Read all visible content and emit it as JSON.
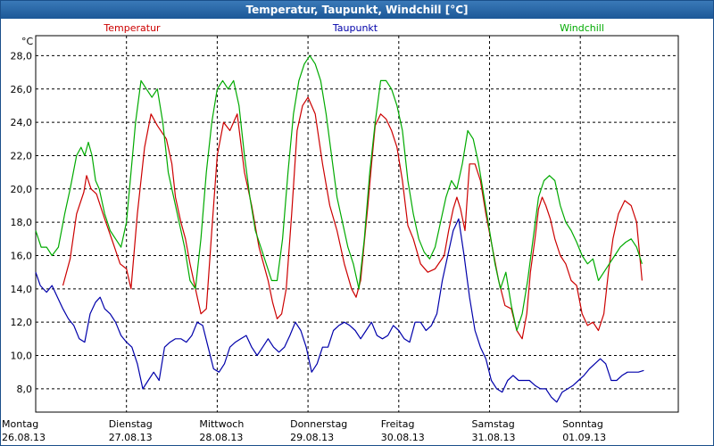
{
  "window": {
    "title": "Temperatur, Taupunkt, Windchill [°C]"
  },
  "colors": {
    "temperatur": "#cc0000",
    "taupunkt": "#0000aa",
    "windchill": "#00aa00",
    "titlebar": "#1c5897"
  },
  "chart_data": {
    "type": "line",
    "title": "Temperatur, Taupunkt, Windchill [°C]",
    "ylabel": "°C",
    "ylim": [
      6.6,
      29.2
    ],
    "yticks": [
      "8,0",
      "10,0",
      "12,0",
      "14,0",
      "16,0",
      "18,0",
      "20,0",
      "22,0",
      "24,0",
      "26,0",
      "28,0"
    ],
    "xlim": [
      0,
      7
    ],
    "xticks": [
      {
        "day": "Montag",
        "date": "26.08.13"
      },
      {
        "day": "Dienstag",
        "date": "27.08.13"
      },
      {
        "day": "Mittwoch",
        "date": "28.08.13"
      },
      {
        "day": "Donnerstag",
        "date": "29.08.13"
      },
      {
        "day": "Freitag",
        "date": "30.08.13"
      },
      {
        "day": "Samstag",
        "date": "31.08.13"
      },
      {
        "day": "Sonntag",
        "date": "01.09.13"
      }
    ],
    "grid": true,
    "legend": [
      "Temperatur",
      "Taupunkt",
      "Windchill"
    ],
    "series": [
      {
        "name": "Temperatur",
        "x": [
          0.3,
          0.38,
          0.45,
          0.53,
          0.56,
          0.61,
          0.67,
          0.76,
          0.85,
          0.93,
          1.0,
          1.05,
          1.12,
          1.2,
          1.27,
          1.34,
          1.44,
          1.5,
          1.54,
          1.6,
          1.65,
          1.7,
          1.76,
          1.82,
          1.88,
          1.94,
          2.0,
          2.07,
          2.14,
          2.22,
          2.3,
          2.38,
          2.46,
          2.51,
          2.56,
          2.61,
          2.66,
          2.71,
          2.76,
          2.82,
          2.88,
          2.94,
          3.0,
          3.08,
          3.16,
          3.24,
          3.32,
          3.4,
          3.48,
          3.53,
          3.58,
          3.62,
          3.66,
          3.7,
          3.74,
          3.8,
          3.86,
          3.92,
          3.98,
          4.04,
          4.1,
          4.16,
          4.24,
          4.32,
          4.4,
          4.5,
          4.55,
          4.6,
          4.64,
          4.68,
          4.73,
          4.78,
          4.84,
          4.9,
          4.96,
          5.02,
          5.1,
          5.17,
          5.24,
          5.3,
          5.36,
          5.41,
          5.45,
          5.5,
          5.54,
          5.58,
          5.62,
          5.67,
          5.72,
          5.78,
          5.84,
          5.9,
          5.96,
          6.02,
          6.08,
          6.14,
          6.2,
          6.26,
          6.31,
          6.36,
          6.42,
          6.49,
          6.56,
          6.62,
          6.68
        ],
        "y": [
          14.2,
          15.8,
          18.5,
          19.8,
          20.8,
          20.0,
          19.7,
          18.2,
          16.8,
          15.5,
          15.2,
          14.0,
          18.5,
          22.5,
          24.5,
          23.8,
          23.0,
          21.5,
          19.5,
          18.0,
          17.0,
          15.5,
          14.0,
          12.5,
          12.8,
          17.5,
          22.0,
          24.0,
          23.5,
          24.5,
          21.0,
          19.0,
          16.5,
          15.5,
          14.5,
          13.2,
          12.2,
          12.5,
          14.0,
          18.5,
          23.5,
          25.0,
          25.5,
          24.5,
          21.5,
          19.0,
          17.5,
          15.5,
          14.0,
          13.5,
          14.5,
          16.8,
          19.0,
          21.5,
          23.8,
          24.5,
          24.2,
          23.5,
          22.5,
          20.5,
          17.8,
          17.0,
          15.5,
          15.0,
          15.2,
          16.0,
          17.5,
          18.8,
          19.5,
          18.8,
          17.5,
          21.5,
          21.5,
          20.5,
          18.5,
          16.8,
          14.5,
          13.0,
          12.8,
          11.5,
          11.0,
          12.5,
          15.0,
          17.0,
          18.8,
          19.5,
          19.0,
          18.2,
          17.0,
          16.0,
          15.5,
          14.5,
          14.2,
          12.5,
          11.8,
          12.0,
          11.5,
          12.5,
          15.0,
          17.0,
          18.5,
          19.3,
          19.0,
          18.0,
          14.5
        ]
      },
      {
        "name": "Taupunkt",
        "x": [
          0.0,
          0.05,
          0.12,
          0.18,
          0.24,
          0.3,
          0.36,
          0.42,
          0.48,
          0.54,
          0.6,
          0.66,
          0.71,
          0.76,
          0.82,
          0.88,
          0.94,
          1.0,
          1.06,
          1.12,
          1.18,
          1.24,
          1.3,
          1.36,
          1.42,
          1.48,
          1.54,
          1.6,
          1.66,
          1.72,
          1.78,
          1.84,
          1.9,
          1.96,
          2.02,
          2.08,
          2.14,
          2.2,
          2.26,
          2.32,
          2.38,
          2.44,
          2.5,
          2.56,
          2.62,
          2.68,
          2.74,
          2.8,
          2.86,
          2.92,
          2.98,
          3.04,
          3.1,
          3.16,
          3.22,
          3.28,
          3.34,
          3.4,
          3.46,
          3.52,
          3.58,
          3.64,
          3.7,
          3.76,
          3.82,
          3.88,
          3.94,
          4.0,
          4.06,
          4.12,
          4.18,
          4.24,
          4.3,
          4.36,
          4.42,
          4.48,
          4.54,
          4.6,
          4.66,
          4.72,
          4.78,
          4.84,
          4.9,
          4.96,
          5.02,
          5.08,
          5.14,
          5.2,
          5.26,
          5.32,
          5.38,
          5.44,
          5.5,
          5.56,
          5.62,
          5.68,
          5.74,
          5.8,
          5.86,
          5.92,
          5.98,
          6.04,
          6.1,
          6.16,
          6.22,
          6.28,
          6.34,
          6.4,
          6.46,
          6.52,
          6.58,
          6.64,
          6.7
        ],
        "y": [
          15.0,
          14.2,
          13.8,
          14.2,
          13.5,
          12.8,
          12.2,
          11.8,
          11.0,
          10.8,
          12.5,
          13.2,
          13.5,
          12.8,
          12.5,
          12.0,
          11.2,
          10.8,
          10.5,
          9.5,
          8.0,
          8.5,
          9.0,
          8.5,
          10.5,
          10.8,
          11.0,
          11.0,
          10.8,
          11.2,
          12.0,
          11.8,
          10.5,
          9.2,
          9.0,
          9.5,
          10.5,
          10.8,
          11.0,
          11.2,
          10.5,
          10.0,
          10.5,
          11.0,
          10.5,
          10.2,
          10.5,
          11.2,
          12.0,
          11.5,
          10.5,
          9.0,
          9.5,
          10.5,
          10.5,
          11.5,
          11.8,
          12.0,
          11.8,
          11.5,
          11.0,
          11.5,
          12.0,
          11.2,
          11.0,
          11.2,
          11.8,
          11.5,
          11.0,
          10.8,
          12.0,
          12.0,
          11.5,
          11.8,
          12.5,
          14.5,
          16.0,
          17.5,
          18.2,
          16.0,
          13.5,
          11.5,
          10.5,
          9.8,
          8.5,
          8.0,
          7.8,
          8.5,
          8.8,
          8.5,
          8.5,
          8.5,
          8.2,
          8.0,
          8.0,
          7.5,
          7.2,
          7.8,
          8.0,
          8.2,
          8.5,
          8.8,
          9.2,
          9.5,
          9.8,
          9.5,
          8.5,
          8.5,
          8.8,
          9.0,
          9.0,
          9.0,
          9.1
        ]
      },
      {
        "name": "Windchill",
        "x": [
          0.0,
          0.06,
          0.12,
          0.18,
          0.25,
          0.32,
          0.38,
          0.45,
          0.5,
          0.54,
          0.58,
          0.62,
          0.66,
          0.7,
          0.76,
          0.82,
          0.88,
          0.94,
          1.0,
          1.05,
          1.1,
          1.16,
          1.22,
          1.28,
          1.34,
          1.4,
          1.46,
          1.52,
          1.58,
          1.64,
          1.7,
          1.76,
          1.82,
          1.88,
          1.94,
          2.0,
          2.06,
          2.12,
          2.18,
          2.24,
          2.3,
          2.36,
          2.42,
          2.48,
          2.54,
          2.6,
          2.66,
          2.72,
          2.78,
          2.84,
          2.9,
          2.96,
          3.02,
          3.08,
          3.14,
          3.2,
          3.26,
          3.32,
          3.38,
          3.44,
          3.5,
          3.56,
          3.62,
          3.68,
          3.74,
          3.8,
          3.86,
          3.92,
          3.98,
          4.04,
          4.1,
          4.16,
          4.22,
          4.28,
          4.34,
          4.4,
          4.46,
          4.52,
          4.58,
          4.64,
          4.7,
          4.76,
          4.82,
          4.88,
          4.94,
          5.0,
          5.06,
          5.12,
          5.18,
          5.24,
          5.3,
          5.36,
          5.42,
          5.48,
          5.54,
          5.6,
          5.66,
          5.72,
          5.78,
          5.84,
          5.9,
          5.96,
          6.02,
          6.08,
          6.14,
          6.2,
          6.26,
          6.32,
          6.38,
          6.44,
          6.5,
          6.56,
          6.62,
          6.68
        ],
        "y": [
          17.5,
          16.5,
          16.5,
          16.0,
          16.5,
          18.5,
          20.0,
          22.0,
          22.5,
          22.0,
          22.8,
          22.0,
          20.5,
          20.0,
          18.5,
          17.5,
          17.0,
          16.5,
          18.0,
          21.0,
          24.0,
          26.5,
          26.0,
          25.5,
          26.0,
          24.0,
          21.0,
          19.5,
          18.0,
          16.5,
          14.5,
          14.0,
          17.0,
          21.0,
          24.0,
          26.0,
          26.5,
          26.0,
          26.5,
          25.0,
          22.0,
          19.5,
          17.5,
          16.5,
          15.5,
          14.5,
          14.5,
          17.0,
          21.0,
          24.5,
          26.5,
          27.5,
          28.0,
          27.5,
          26.5,
          24.5,
          22.0,
          19.5,
          18.0,
          16.5,
          15.5,
          14.0,
          17.0,
          21.0,
          24.0,
          26.5,
          26.5,
          26.0,
          25.0,
          23.5,
          20.5,
          18.5,
          17.0,
          16.2,
          15.8,
          16.5,
          18.0,
          19.5,
          20.5,
          20.0,
          21.5,
          23.5,
          23.0,
          21.5,
          19.5,
          17.5,
          15.5,
          14.0,
          15.0,
          13.0,
          11.5,
          12.5,
          14.5,
          17.0,
          19.5,
          20.5,
          20.8,
          20.5,
          19.0,
          18.0,
          17.5,
          16.8,
          16.0,
          15.5,
          15.8,
          14.5,
          15.0,
          15.5,
          16.0,
          16.5,
          16.8,
          17.0,
          16.5,
          15.5
        ]
      }
    ]
  }
}
